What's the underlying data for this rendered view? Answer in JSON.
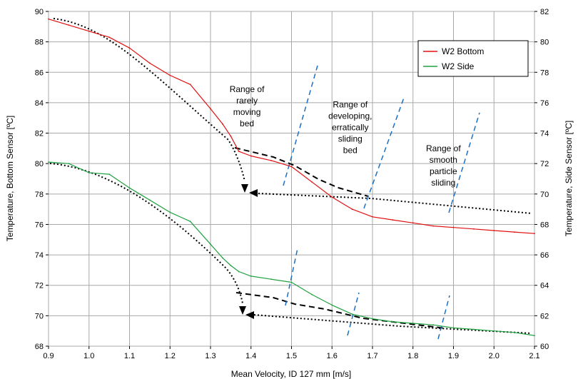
{
  "chart_data": {
    "type": "line",
    "xlabel": "Mean Velocity, ID 127 mm [m/s]",
    "ylabel": "Temperature, Bottom Sensor [ºC]",
    "y2label": "Temperature, Side Sensor [ºC]",
    "xlim": [
      0.9,
      2.1
    ],
    "ylim": [
      68,
      90
    ],
    "y2lim": [
      60,
      82
    ],
    "x_ticks": [
      "0.9",
      "1.0",
      "1.1",
      "1.2",
      "1.3",
      "1.4",
      "1.5",
      "1.6",
      "1.7",
      "1.8",
      "1.9",
      "2.0",
      "2.1"
    ],
    "y_ticks": [
      "68",
      "70",
      "72",
      "74",
      "76",
      "78",
      "80",
      "82",
      "84",
      "86",
      "88",
      "90"
    ],
    "y2_ticks": [
      "60",
      "62",
      "64",
      "66",
      "68",
      "70",
      "72",
      "74",
      "76",
      "78",
      "80",
      "82"
    ],
    "grid": true,
    "legend_position": "top-right",
    "series": [
      {
        "name": "W2 Bottom",
        "color": "#e01010",
        "axis": "left",
        "x": [
          0.9,
          0.95,
          1.0,
          1.05,
          1.1,
          1.15,
          1.2,
          1.25,
          1.3,
          1.33,
          1.35,
          1.37,
          1.4,
          1.45,
          1.5,
          1.55,
          1.6,
          1.65,
          1.7,
          1.75,
          1.8,
          1.85,
          1.9,
          1.95,
          2.0,
          2.05,
          2.1
        ],
        "values": [
          89.5,
          89.1,
          88.7,
          88.3,
          87.6,
          86.6,
          85.8,
          85.2,
          83.6,
          82.6,
          81.8,
          80.8,
          80.5,
          80.2,
          79.8,
          78.8,
          77.8,
          77.0,
          76.5,
          76.3,
          76.1,
          75.9,
          75.8,
          75.7,
          75.6,
          75.5,
          75.4
        ]
      },
      {
        "name": "W2 Side",
        "color": "#20a040",
        "axis": "right",
        "x": [
          0.9,
          0.95,
          1.0,
          1.05,
          1.1,
          1.15,
          1.2,
          1.25,
          1.3,
          1.33,
          1.35,
          1.37,
          1.4,
          1.45,
          1.5,
          1.55,
          1.6,
          1.65,
          1.7,
          1.75,
          1.8,
          1.85,
          1.9,
          1.95,
          2.0,
          2.05,
          2.1
        ],
        "values": [
          72.1,
          72.0,
          71.4,
          71.3,
          70.4,
          69.6,
          68.8,
          68.2,
          66.7,
          65.8,
          65.3,
          64.9,
          64.6,
          64.4,
          64.2,
          63.4,
          62.7,
          62.1,
          61.8,
          61.6,
          61.5,
          61.4,
          61.2,
          61.1,
          61.0,
          60.9,
          60.7
        ]
      }
    ],
    "annotations": [
      {
        "lines": [
          "Range of",
          "rarely",
          "moving",
          "bed"
        ],
        "x": 1.39,
        "y": 84.7
      },
      {
        "lines": [
          "Range of",
          "developing,",
          "erratically",
          "sliding",
          "bed"
        ],
        "x": 1.645,
        "y": 83.7
      },
      {
        "lines": [
          "Range of",
          "smooth",
          "particle",
          "sliding"
        ],
        "x": 1.875,
        "y": 80.8
      }
    ]
  }
}
